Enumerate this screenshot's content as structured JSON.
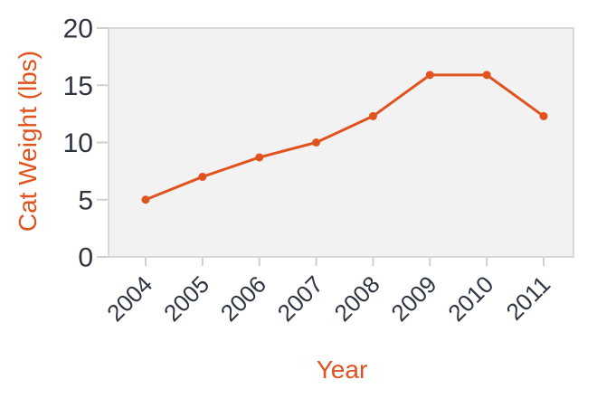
{
  "chart_data": {
    "type": "line",
    "title": "",
    "xlabel": "Year",
    "ylabel": "Cat Weight (lbs)",
    "categories": [
      "2004",
      "2005",
      "2006",
      "2007",
      "2008",
      "2009",
      "2010",
      "2011"
    ],
    "series": [
      {
        "name": "Cat Weight",
        "values": [
          5.0,
          7.0,
          8.7,
          10.0,
          12.3,
          15.9,
          15.9,
          12.3
        ]
      }
    ],
    "ylim": [
      0,
      20
    ],
    "yticks": [
      0,
      5,
      10,
      15,
      20
    ],
    "ytick_labels": [
      "0",
      "5",
      "10",
      "15",
      "20"
    ],
    "xtick_rotation_deg": -45,
    "grid": false,
    "legend": "none",
    "marker": "circle",
    "colors": {
      "line": "#E0531E",
      "marker": "#E0531E",
      "axis_title": "#E0531E",
      "tick_label": "#2E3440",
      "plot_bg": "#F2F2F2",
      "plot_border": "#D8D8D8",
      "tick_mark": "#CFCFCF",
      "background": "#FFFFFF"
    }
  }
}
